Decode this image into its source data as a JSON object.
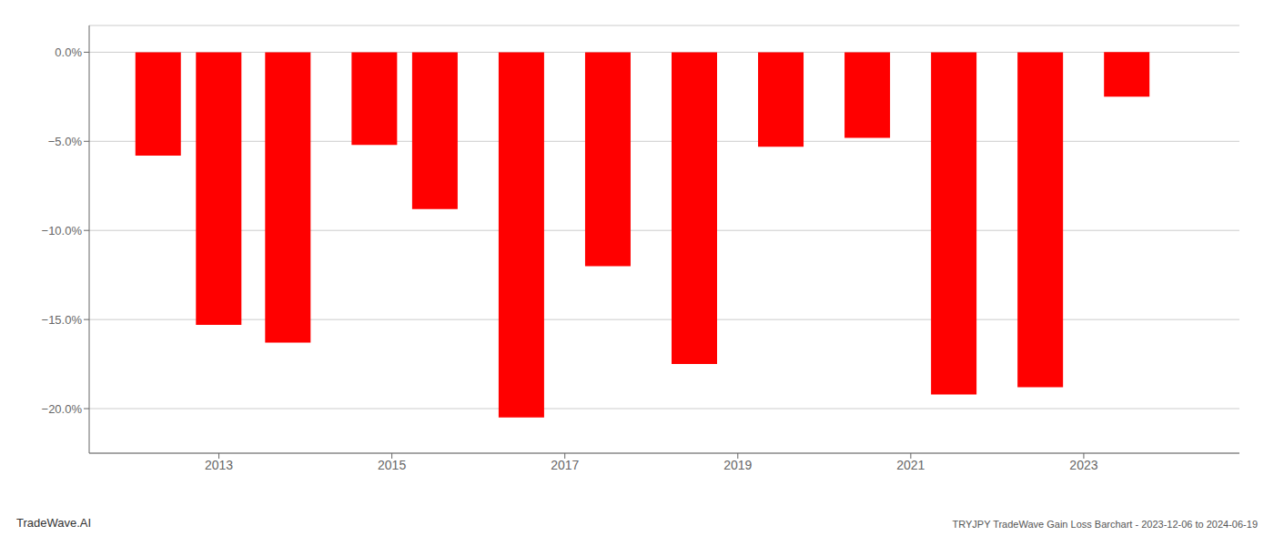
{
  "chart_data": {
    "type": "bar",
    "x": [
      2012.3,
      2013.0,
      2013.8,
      2014.8,
      2015.5,
      2016.5,
      2017.5,
      2018.5,
      2019.5,
      2020.5,
      2021.5,
      2022.5,
      2023.5
    ],
    "values": [
      -5.8,
      -15.3,
      -16.3,
      -5.2,
      -8.8,
      -20.5,
      -12.0,
      -17.5,
      -5.3,
      -4.8,
      -19.2,
      -18.8,
      -2.5
    ],
    "color": "#ff0000",
    "xlim": [
      2011.5,
      2024.8
    ],
    "xticks": [
      2013,
      2015,
      2017,
      2019,
      2021,
      2023
    ],
    "ylim": [
      -22.5,
      1.5
    ],
    "yticks": [
      {
        "value": 0.0,
        "label": "0.0%"
      },
      {
        "value": -5.0,
        "label": "−5.0%"
      },
      {
        "value": -10.0,
        "label": "−10.0%"
      },
      {
        "value": -15.0,
        "label": "−15.0%"
      },
      {
        "value": -20.0,
        "label": "−20.0%"
      }
    ],
    "grid": true,
    "annotations": [
      "TradeWave.AI",
      "TRYJPY TradeWave Gain Loss Barchart - 2023-12-06 to 2024-06-19"
    ]
  }
}
